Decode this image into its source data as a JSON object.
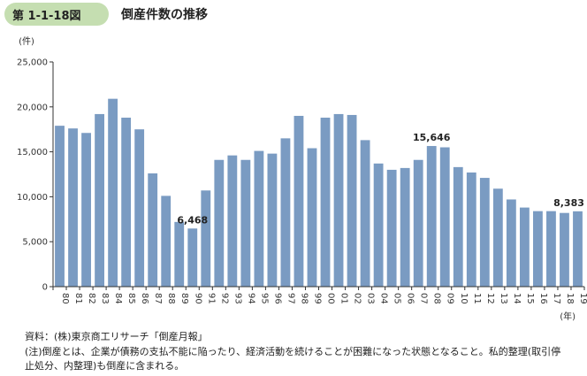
{
  "header": {
    "figure_number": "第 1-1-18図",
    "title": "倒産件数の推移"
  },
  "chart_data": {
    "type": "bar",
    "title": "倒産件数の推移",
    "ylabel": "(件)",
    "xlabel": "(年)",
    "ylim": [
      0,
      25000
    ],
    "yticks": [
      0,
      5000,
      10000,
      15000,
      20000,
      25000
    ],
    "ytick_labels": [
      "0",
      "5,000",
      "10,000",
      "15,000",
      "20,000",
      "25,000"
    ],
    "categories": [
      "80",
      "81",
      "82",
      "83",
      "84",
      "85",
      "86",
      "87",
      "88",
      "89",
      "90",
      "91",
      "92",
      "93",
      "94",
      "95",
      "96",
      "97",
      "98",
      "99",
      "00",
      "01",
      "02",
      "03",
      "04",
      "05",
      "06",
      "07",
      "08",
      "09",
      "10",
      "11",
      "12",
      "13",
      "14",
      "15",
      "16",
      "17",
      "18",
      "19"
    ],
    "values": [
      17900,
      17600,
      17100,
      19200,
      20900,
      18800,
      17500,
      12600,
      10100,
      7200,
      6468,
      10700,
      14100,
      14600,
      14100,
      15100,
      14800,
      16500,
      19000,
      15400,
      18800,
      19200,
      19100,
      16300,
      13700,
      13000,
      13200,
      14100,
      15646,
      15500,
      13300,
      12700,
      12100,
      10900,
      9700,
      8800,
      8400,
      8400,
      8200,
      8383
    ],
    "bar_color": "#7a9bc2",
    "annotations": [
      {
        "category": "90",
        "label": "6,468"
      },
      {
        "category": "08",
        "label": "15,646"
      },
      {
        "category": "19",
        "label": "8,383"
      }
    ],
    "grid": false,
    "legend": "none"
  },
  "notes": {
    "source": "資料：(株)東京商工リサーチ「倒産月報」",
    "note_line1": "(注)倒産とは、企業が債務の支払不能に陥ったり、経済活動を続けることが困難になった状態となること。私的整理(取引停",
    "note_line2": "止処分、内整理)も倒産に含まれる。"
  }
}
